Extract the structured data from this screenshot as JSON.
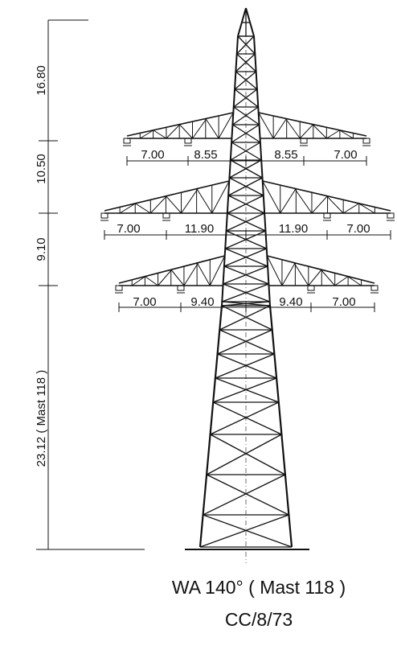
{
  "heights": [
    "16.80",
    "10.50",
    "9.10",
    "23.12 ( Mast 118 )"
  ],
  "arms": [
    {
      "spans": [
        "7.00",
        "8.55",
        "8.55",
        "7.00"
      ]
    },
    {
      "spans": [
        "7.00",
        "11.90",
        "11.90",
        "7.00"
      ]
    },
    {
      "spans": [
        "7.00",
        "9.40",
        "9.40",
        "7.00"
      ]
    }
  ],
  "caption": {
    "title": "WA 140° ( Mast 118 )",
    "code": "CC/8/73"
  }
}
